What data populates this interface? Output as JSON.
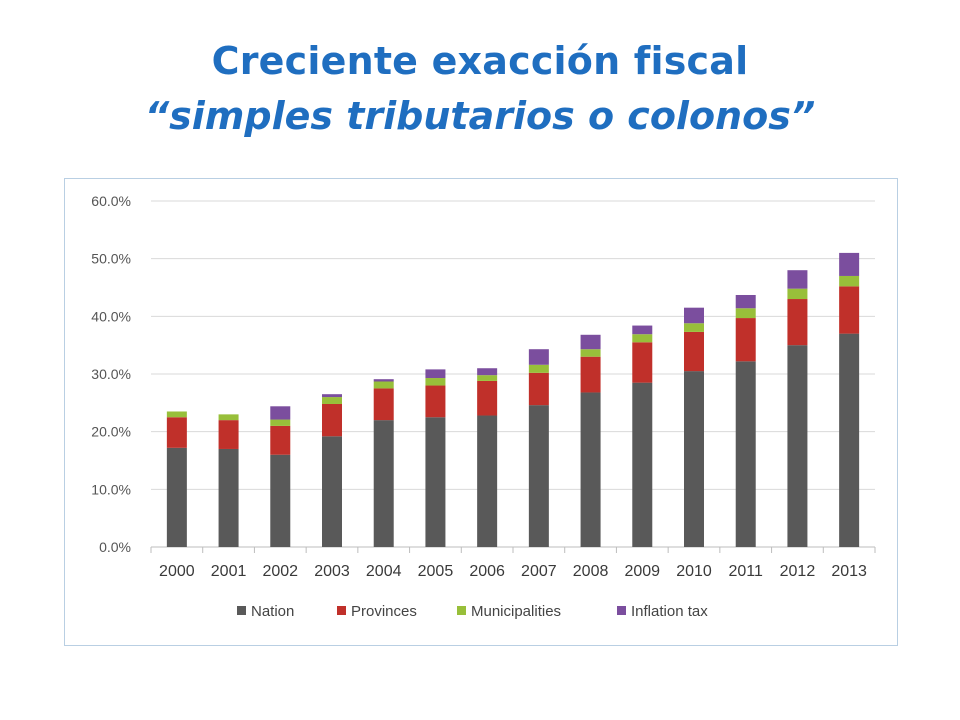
{
  "slide": {
    "title_line1": "Creciente exacción fiscal",
    "title_line2": "“simples tributarios o colonos”"
  },
  "chart_data": {
    "type": "bar",
    "stacked": true,
    "categories": [
      "2000",
      "2001",
      "2002",
      "2003",
      "2004",
      "2005",
      "2006",
      "2007",
      "2008",
      "2009",
      "2010",
      "2011",
      "2012",
      "2013"
    ],
    "series": [
      {
        "name": "Nation",
        "color": "#595959",
        "values": [
          17.2,
          17.0,
          16.0,
          19.2,
          22.0,
          22.5,
          22.8,
          24.6,
          26.8,
          28.5,
          30.5,
          32.2,
          35.0,
          37.0
        ]
      },
      {
        "name": "Provinces",
        "color": "#c0302a",
        "values": [
          5.3,
          5.0,
          5.0,
          5.6,
          5.5,
          5.5,
          6.0,
          5.6,
          6.2,
          7.0,
          6.8,
          7.5,
          8.0,
          8.2
        ]
      },
      {
        "name": "Municipalities",
        "color": "#98bf3a",
        "values": [
          1.0,
          1.0,
          1.1,
          1.2,
          1.2,
          1.3,
          1.0,
          1.4,
          1.3,
          1.4,
          1.5,
          1.7,
          1.8,
          1.8
        ]
      },
      {
        "name": "Inflation tax",
        "color": "#7b4e9e",
        "values": [
          0.0,
          0.0,
          2.3,
          0.5,
          0.4,
          1.5,
          1.2,
          2.7,
          2.5,
          1.5,
          2.7,
          2.3,
          3.2,
          4.0
        ]
      }
    ],
    "yticks": [
      "0.0%",
      "10.0%",
      "20.0%",
      "30.0%",
      "40.0%",
      "50.0%",
      "60.0%"
    ],
    "ylim": [
      0,
      60
    ],
    "grid": true,
    "legend_position": "bottom"
  }
}
